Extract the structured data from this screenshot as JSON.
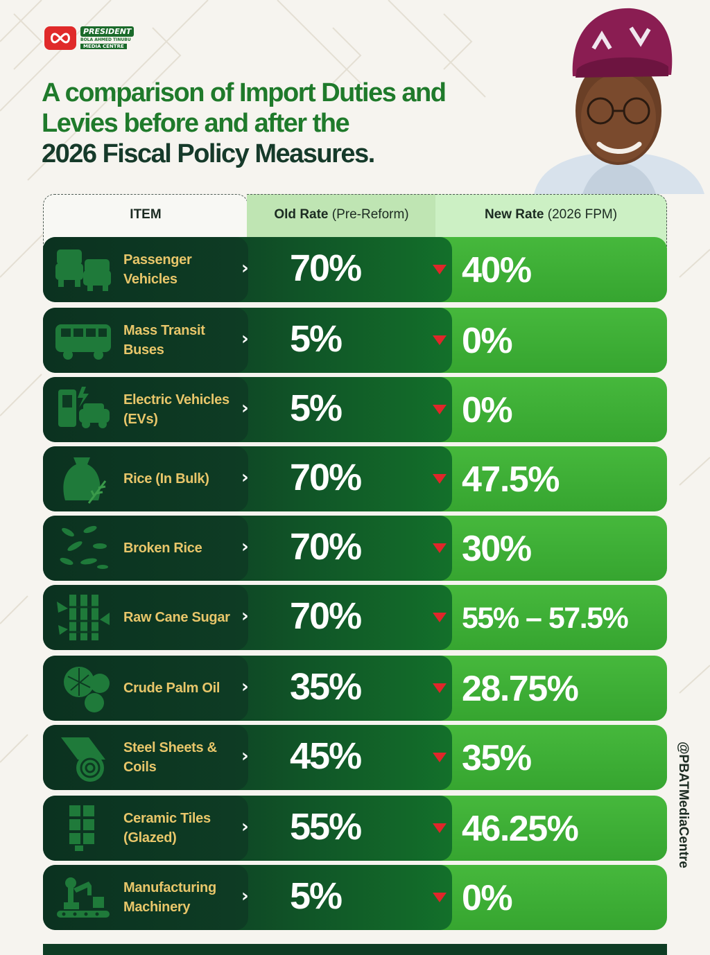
{
  "logo": {
    "line1": "PRESIDENT",
    "line2": "BOLA AHMED TINUBU",
    "line3": "MEDIA CENTRE"
  },
  "title": {
    "part1": "A comparison of Import Duties and Levies before and after the",
    "part2": "2026 Fiscal Policy Measures."
  },
  "headers": {
    "item": "ITEM",
    "old_bold": "Old Rate",
    "old_light": "(Pre-Reform)",
    "new_bold": "New Rate",
    "new_light": "(2026 FPM)"
  },
  "rows": [
    {
      "icon": "cars-icon",
      "label": "Passenger Vehicles",
      "old": "70%",
      "new": "40%"
    },
    {
      "icon": "bus-icon",
      "label": "Mass Transit Buses",
      "old": "5%",
      "new": "0%"
    },
    {
      "icon": "ev-charger-icon",
      "label": "Electric Vehicles (EVs)",
      "old": "5%",
      "new": "0%"
    },
    {
      "icon": "rice-sack-icon",
      "label": "Rice (In Bulk)",
      "old": "70%",
      "new": "47.5%"
    },
    {
      "icon": "rice-grains-icon",
      "label": "Broken Rice",
      "old": "70%",
      "new": "30%"
    },
    {
      "icon": "sugar-cane-icon",
      "label": "Raw Cane Sugar",
      "old": "70%",
      "new": "55% – 57.5%"
    },
    {
      "icon": "palm-fruit-icon",
      "label": "Crude Palm Oil",
      "old": "35%",
      "new": "28.75%"
    },
    {
      "icon": "steel-coil-icon",
      "label": "Steel Sheets & Coils",
      "old": "45%",
      "new": "35%"
    },
    {
      "icon": "tiles-icon",
      "label": "Ceramic Tiles (Glazed)",
      "old": "55%",
      "new": "46.25%"
    },
    {
      "icon": "robot-arm-icon",
      "label": "Manufacturing Machinery",
      "old": "5%",
      "new": "0%"
    }
  ],
  "social": {
    "handle": "@PBATMediaCentre"
  },
  "colors": {
    "item_text": "#e8c66a",
    "dark_green": "#0e3c24",
    "bright_green": "#3fb036",
    "arrow_red": "#e0262a"
  }
}
